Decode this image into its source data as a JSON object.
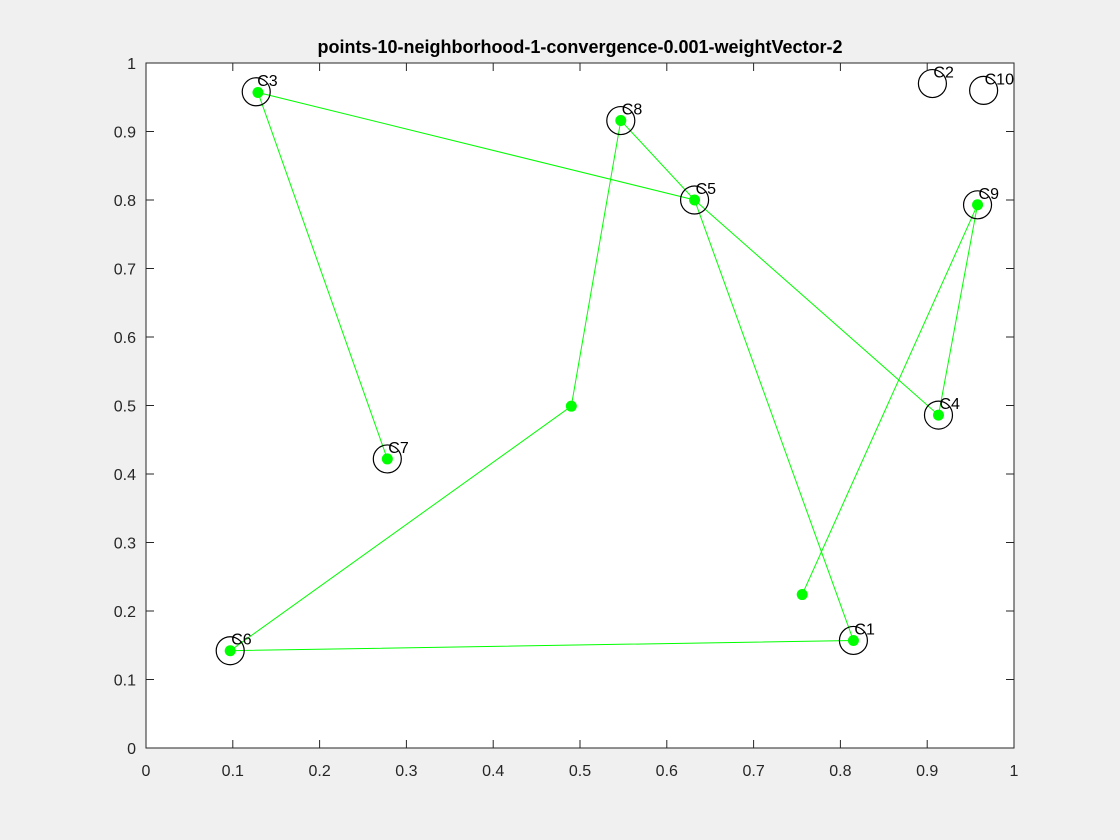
{
  "chart_data": {
    "type": "scatter",
    "title": "points-10-neighborhood-1-convergence-0.001-weightVector-2",
    "xlim": [
      0,
      1
    ],
    "ylim": [
      0,
      1
    ],
    "x_ticks": [
      "0",
      "0.1",
      "0.2",
      "0.3",
      "0.4",
      "0.5",
      "0.6",
      "0.7",
      "0.8",
      "0.9",
      "1"
    ],
    "y_ticks": [
      "0",
      "0.1",
      "0.2",
      "0.3",
      "0.4",
      "0.5",
      "0.6",
      "0.7",
      "0.8",
      "0.9",
      "1"
    ],
    "grid": false,
    "colors": {
      "city": "#000000",
      "neuron": "#00ff00",
      "path": "#00ff00"
    },
    "cities": [
      {
        "label": "C1",
        "x": 0.815,
        "y": 0.157
      },
      {
        "label": "C2",
        "x": 0.906,
        "y": 0.97
      },
      {
        "label": "C3",
        "x": 0.127,
        "y": 0.958
      },
      {
        "label": "C4",
        "x": 0.913,
        "y": 0.486
      },
      {
        "label": "C5",
        "x": 0.632,
        "y": 0.8
      },
      {
        "label": "C6",
        "x": 0.097,
        "y": 0.142
      },
      {
        "label": "C7",
        "x": 0.278,
        "y": 0.422
      },
      {
        "label": "C8",
        "x": 0.547,
        "y": 0.916
      },
      {
        "label": "C9",
        "x": 0.958,
        "y": 0.793
      },
      {
        "label": "C10",
        "x": 0.965,
        "y": 0.96
      }
    ],
    "neuron_path": [
      {
        "x": 0.097,
        "y": 0.142
      },
      {
        "x": 0.815,
        "y": 0.157
      },
      {
        "x": 0.632,
        "y": 0.8
      },
      {
        "x": 0.547,
        "y": 0.916
      },
      {
        "x": 0.49,
        "y": 0.499
      },
      {
        "x": 0.097,
        "y": 0.142
      }
    ],
    "neuron_path2": [
      {
        "x": 0.278,
        "y": 0.422
      },
      {
        "x": 0.129,
        "y": 0.957
      },
      {
        "x": 0.632,
        "y": 0.8
      },
      {
        "x": 0.913,
        "y": 0.486
      },
      {
        "x": 0.958,
        "y": 0.793
      },
      {
        "x": 0.756,
        "y": 0.224
      }
    ],
    "neurons": [
      {
        "x": 0.815,
        "y": 0.157
      },
      {
        "x": 0.129,
        "y": 0.957
      },
      {
        "x": 0.913,
        "y": 0.486
      },
      {
        "x": 0.632,
        "y": 0.8
      },
      {
        "x": 0.097,
        "y": 0.142
      },
      {
        "x": 0.278,
        "y": 0.422
      },
      {
        "x": 0.547,
        "y": 0.916
      },
      {
        "x": 0.958,
        "y": 0.793
      },
      {
        "x": 0.49,
        "y": 0.499
      },
      {
        "x": 0.756,
        "y": 0.224
      }
    ]
  }
}
